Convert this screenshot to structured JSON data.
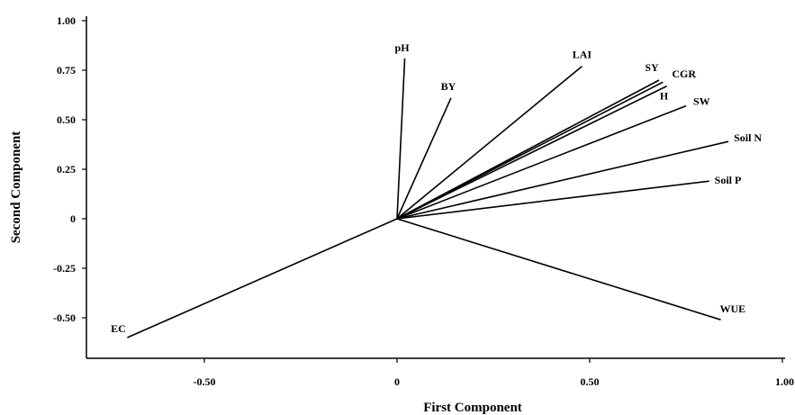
{
  "chart_data": {
    "type": "line",
    "title": "",
    "xlabel": "First Component",
    "ylabel": "Second Component",
    "xlim": [
      -0.82,
      1.02
    ],
    "ylim": [
      -0.72,
      1.03
    ],
    "x_ticks": [
      {
        "value": -0.5,
        "label": "-0.50"
      },
      {
        "value": 0,
        "label": "0"
      },
      {
        "value": 0.5,
        "label": "0.50"
      },
      {
        "value": 1.0,
        "label": "1.00"
      }
    ],
    "y_ticks": [
      {
        "value": 1.0,
        "label": "1.00"
      },
      {
        "value": 0.75,
        "label": "0.75"
      },
      {
        "value": 0.5,
        "label": "0.50"
      },
      {
        "value": 0.25,
        "label": "0.25"
      },
      {
        "value": 0,
        "label": "0"
      },
      {
        "value": -0.25,
        "label": "-0.25"
      },
      {
        "value": -0.5,
        "label": "-0.50"
      }
    ],
    "grid": false,
    "legend": "none",
    "vectors": [
      {
        "name": "pH",
        "x": 0.02,
        "y": 0.81
      },
      {
        "name": "BY",
        "x": 0.14,
        "y": 0.61
      },
      {
        "name": "LAI",
        "x": 0.48,
        "y": 0.77
      },
      {
        "name": "SY",
        "x": 0.68,
        "y": 0.7
      },
      {
        "name": "CGR",
        "x": 0.69,
        "y": 0.69
      },
      {
        "name": "H",
        "x": 0.7,
        "y": 0.67
      },
      {
        "name": "SW",
        "x": 0.75,
        "y": 0.57
      },
      {
        "name": "Soil N",
        "x": 0.86,
        "y": 0.39
      },
      {
        "name": "Soil P",
        "x": 0.81,
        "y": 0.19
      },
      {
        "name": "WUE",
        "x": 0.84,
        "y": -0.51
      },
      {
        "name": "EC",
        "x": -0.7,
        "y": -0.6
      }
    ]
  }
}
